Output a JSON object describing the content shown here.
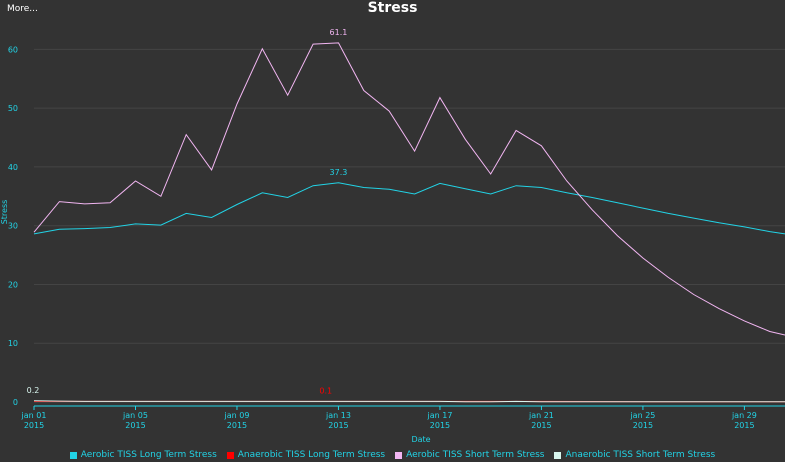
{
  "header": {
    "more_label": "More..."
  },
  "chart_data": {
    "type": "line",
    "title": "Stress",
    "xlabel": "Date",
    "ylabel": "Stress",
    "ylim": [
      0,
      65
    ],
    "yticks": [
      0,
      10,
      20,
      30,
      40,
      50,
      60
    ],
    "x_start": "2015-01-01",
    "xlim_days": [
      0,
      29.6
    ],
    "xticks": [
      {
        "day": 0,
        "label": "jan 01",
        "year": "2015"
      },
      {
        "day": 4,
        "label": "jan 05",
        "year": "2015"
      },
      {
        "day": 8,
        "label": "jan 09",
        "year": "2015"
      },
      {
        "day": 12,
        "label": "jan 13",
        "year": "2015"
      },
      {
        "day": 16,
        "label": "jan 17",
        "year": "2015"
      },
      {
        "day": 20,
        "label": "jan 21",
        "year": "2015"
      },
      {
        "day": 24,
        "label": "jan 25",
        "year": "2015"
      },
      {
        "day": 28,
        "label": "jan 29",
        "year": "2015"
      }
    ],
    "grid": true,
    "legend_position": "bottom",
    "series": [
      {
        "name": "Aerobic TISS Long Term Stress",
        "color": "#22d3e6",
        "x": [
          0,
          1,
          2,
          3,
          4,
          5,
          6,
          7,
          8,
          9,
          10,
          11,
          12,
          13,
          14,
          15,
          16,
          17,
          18,
          19,
          20,
          21,
          22,
          23,
          24,
          25,
          26,
          27,
          28,
          29,
          29.6
        ],
        "values": [
          28.6,
          29.4,
          29.5,
          29.7,
          30.3,
          30.1,
          32.1,
          31.4,
          33.6,
          35.6,
          34.8,
          36.8,
          37.3,
          36.5,
          36.2,
          35.4,
          37.2,
          36.3,
          35.4,
          36.8,
          36.5,
          35.6,
          34.8,
          33.9,
          33.0,
          32.1,
          31.3,
          30.5,
          29.8,
          29.0,
          28.6
        ],
        "peak_label": {
          "x": 12,
          "value": 37.3,
          "text": "37.3"
        }
      },
      {
        "name": "Anaerobic TISS Long Term Stress",
        "color": "#ff0000",
        "x": [
          0,
          4,
          8,
          11.5,
          16,
          20,
          24,
          28,
          29.6
        ],
        "values": [
          0.1,
          0.1,
          0.1,
          0.1,
          0.1,
          0.1,
          0.05,
          0.05,
          0.05
        ],
        "peak_label": {
          "x": 11.5,
          "value": 0.1,
          "text": "0.1"
        }
      },
      {
        "name": "Aerobic TISS Short Term Stress",
        "color": "#f2b6f2",
        "x": [
          0,
          1,
          2,
          3,
          4,
          5,
          6,
          7,
          8,
          9,
          10,
          11,
          12,
          13,
          14,
          15,
          16,
          17,
          18,
          19,
          20,
          21,
          22,
          23,
          24,
          25,
          26,
          27,
          28,
          29,
          29.6
        ],
        "values": [
          28.9,
          34.1,
          33.7,
          33.9,
          37.6,
          35.0,
          45.5,
          39.5,
          50.7,
          60.1,
          52.2,
          60.9,
          61.1,
          53.0,
          49.5,
          42.7,
          51.8,
          44.7,
          38.8,
          46.2,
          43.6,
          37.6,
          32.7,
          28.3,
          24.5,
          21.2,
          18.3,
          15.9,
          13.8,
          12.0,
          11.4
        ],
        "peak_label": {
          "x": 12,
          "value": 61.1,
          "text": "61.1"
        }
      },
      {
        "name": "Anaerobic TISS Short Term Stress",
        "color": "#d8f5ee",
        "x": [
          0,
          1,
          2,
          3,
          4,
          5,
          6,
          7,
          8,
          9,
          10,
          11,
          12,
          13,
          14,
          15,
          16,
          17,
          18,
          19,
          20,
          21,
          22,
          23,
          24,
          25,
          26,
          27,
          28,
          29,
          29.6
        ],
        "values": [
          0.2,
          0.15,
          0.1,
          0.1,
          0.1,
          0.1,
          0.1,
          0.1,
          0.1,
          0.1,
          0.1,
          0.1,
          0.1,
          0.1,
          0.1,
          0.1,
          0.1,
          0.05,
          0.05,
          0.1,
          0.05,
          0.05,
          0.05,
          0.05,
          0.05,
          0.05,
          0.05,
          0.05,
          0.05,
          0.05,
          0.05
        ],
        "peak_label": {
          "x": 0,
          "value": 0.2,
          "text": "0.2"
        }
      }
    ]
  }
}
